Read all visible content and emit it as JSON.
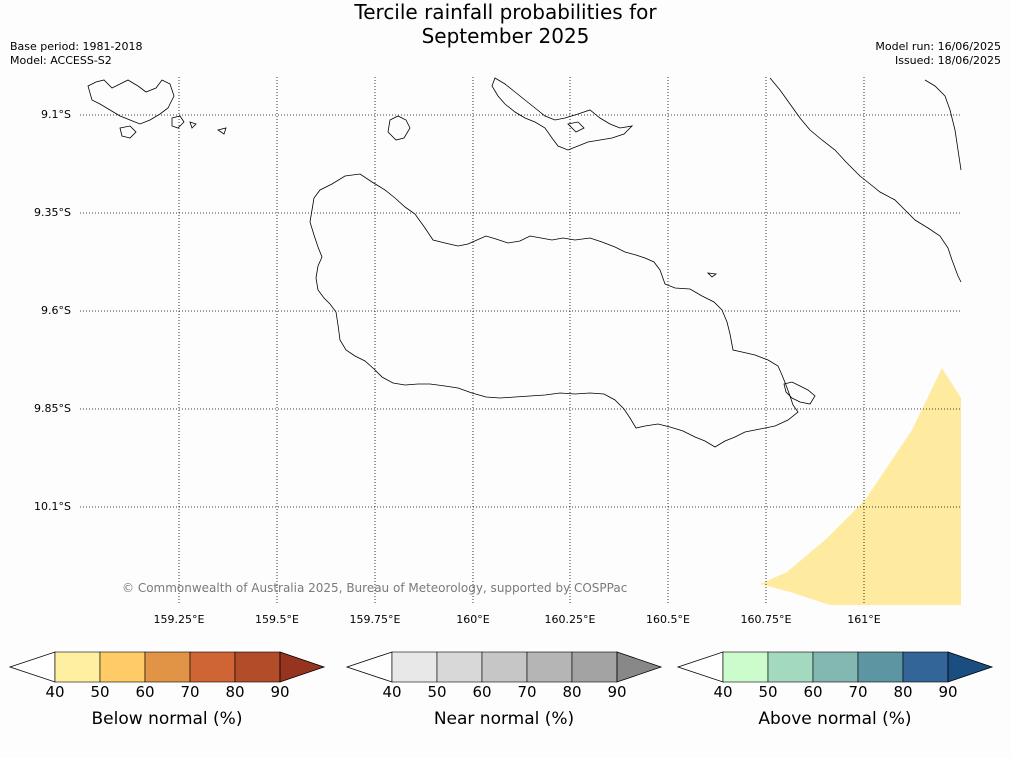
{
  "title_line1": "Tercile rainfall probabilities for",
  "title_line2": "September 2025",
  "meta_left": {
    "base_period": "Base period: 1981-2018",
    "model": "Model: ACCESS-S2"
  },
  "meta_right": {
    "model_run": "Model run: 16/06/2025",
    "issued": "Issued: 18/06/2025"
  },
  "lat_labels": [
    "9.1°S",
    "9.35°S",
    "9.6°S",
    "9.85°S",
    "10.1°S"
  ],
  "lon_labels": [
    "159.25°E",
    "159.5°E",
    "159.75°E",
    "160°E",
    "160.25°E",
    "160.5°E",
    "160.75°E",
    "161°E"
  ],
  "copyright": "© Commonwealth of Australia 2025, Bureau of Meteorology, supported by COSPPac",
  "colorbars": {
    "below": {
      "title": "Below normal (%)",
      "ticks": [
        "40",
        "50",
        "60",
        "70",
        "80",
        "90"
      ],
      "colors": [
        "#fff0a1",
        "#fecb66",
        "#e19446",
        "#cf6534",
        "#b24c29",
        "#97341f"
      ]
    },
    "near": {
      "title": "Near normal (%)",
      "ticks": [
        "40",
        "50",
        "60",
        "70",
        "80",
        "90"
      ],
      "colors": [
        "#e8e8e8",
        "#d8d8d8",
        "#c6c6c6",
        "#b5b5b5",
        "#a3a3a3",
        "#888888"
      ]
    },
    "above": {
      "title": "Above normal (%)",
      "ticks": [
        "40",
        "50",
        "60",
        "70",
        "80",
        "90"
      ],
      "colors": [
        "#ccfccc",
        "#a3d9be",
        "#83b8b2",
        "#5e95a3",
        "#336599",
        "#1a4d80"
      ]
    }
  },
  "colors": {
    "below_normal_region": "#ffeb9f",
    "coastline": "#000000",
    "gridline": "#000000"
  }
}
